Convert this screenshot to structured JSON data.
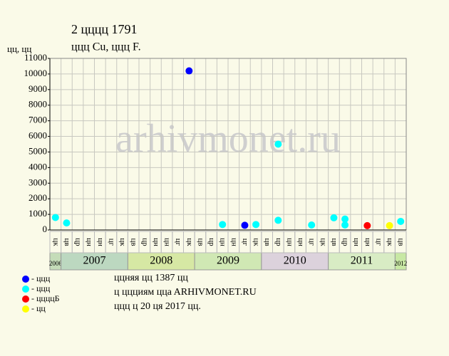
{
  "chart_data": {
    "type": "scatter",
    "title": "2 цццц 1791",
    "subtitle": "ццц Cu, ццц F.",
    "y_label": "цц, цц",
    "watermark": "arhivmonet.ru",
    "ylim": [
      0,
      11000
    ],
    "yticks": [
      0,
      1000,
      2000,
      3000,
      4000,
      5000,
      6000,
      7000,
      8000,
      9000,
      10000,
      11000
    ],
    "grid": true,
    "year_groups": [
      {
        "name": "2006",
        "color": "#c4dcb8",
        "categories": [
          "цк"
        ]
      },
      {
        "name": "2007",
        "color": "#bcd8c0",
        "categories": [
          "цв",
          "цр",
          "цн",
          "цн",
          "цг",
          "цк"
        ]
      },
      {
        "name": "2008",
        "color": "#d6e8a4",
        "categories": [
          "цв",
          "цр",
          "цн",
          "цн",
          "цг",
          "цк"
        ]
      },
      {
        "name": "2009",
        "color": "#d0e8b4",
        "categories": [
          "цв",
          "цр",
          "цн",
          "цн",
          "цг",
          "цк"
        ]
      },
      {
        "name": "2010",
        "color": "#dcd2dc",
        "categories": [
          "цв",
          "цр",
          "цн",
          "цн",
          "цг",
          "цк"
        ]
      },
      {
        "name": "2011",
        "color": "#d8ecc4",
        "categories": [
          "цв",
          "цр",
          "цн",
          "цн",
          "цг",
          "цк"
        ]
      },
      {
        "name": "2012",
        "color": "#c8e8a4",
        "categories": [
          "цв"
        ]
      }
    ],
    "series": [
      {
        "name": "- ццц",
        "color": "#0000ff",
        "x": [
          12,
          17
        ],
        "values": [
          10200,
          300
        ]
      },
      {
        "name": "- ццц",
        "color": "#00ffff",
        "x": [
          0,
          1,
          15,
          18,
          20,
          20,
          23,
          25,
          26,
          26,
          31
        ],
        "values": [
          800,
          450,
          350,
          350,
          620,
          5500,
          320,
          780,
          320,
          700,
          550
        ]
      },
      {
        "name": "- ццццБ",
        "color": "#ff0000",
        "x": [
          28
        ],
        "values": [
          280
        ]
      },
      {
        "name": "- цц",
        "color": "#ffff00",
        "x": [
          30
        ],
        "values": [
          280
        ]
      }
    ],
    "notes": [
      "ццняя цц 1387 цц",
      "ц ццциям ццa ARHIVMONET.RU",
      "ццц ц 20 ця 2017 цц."
    ]
  }
}
